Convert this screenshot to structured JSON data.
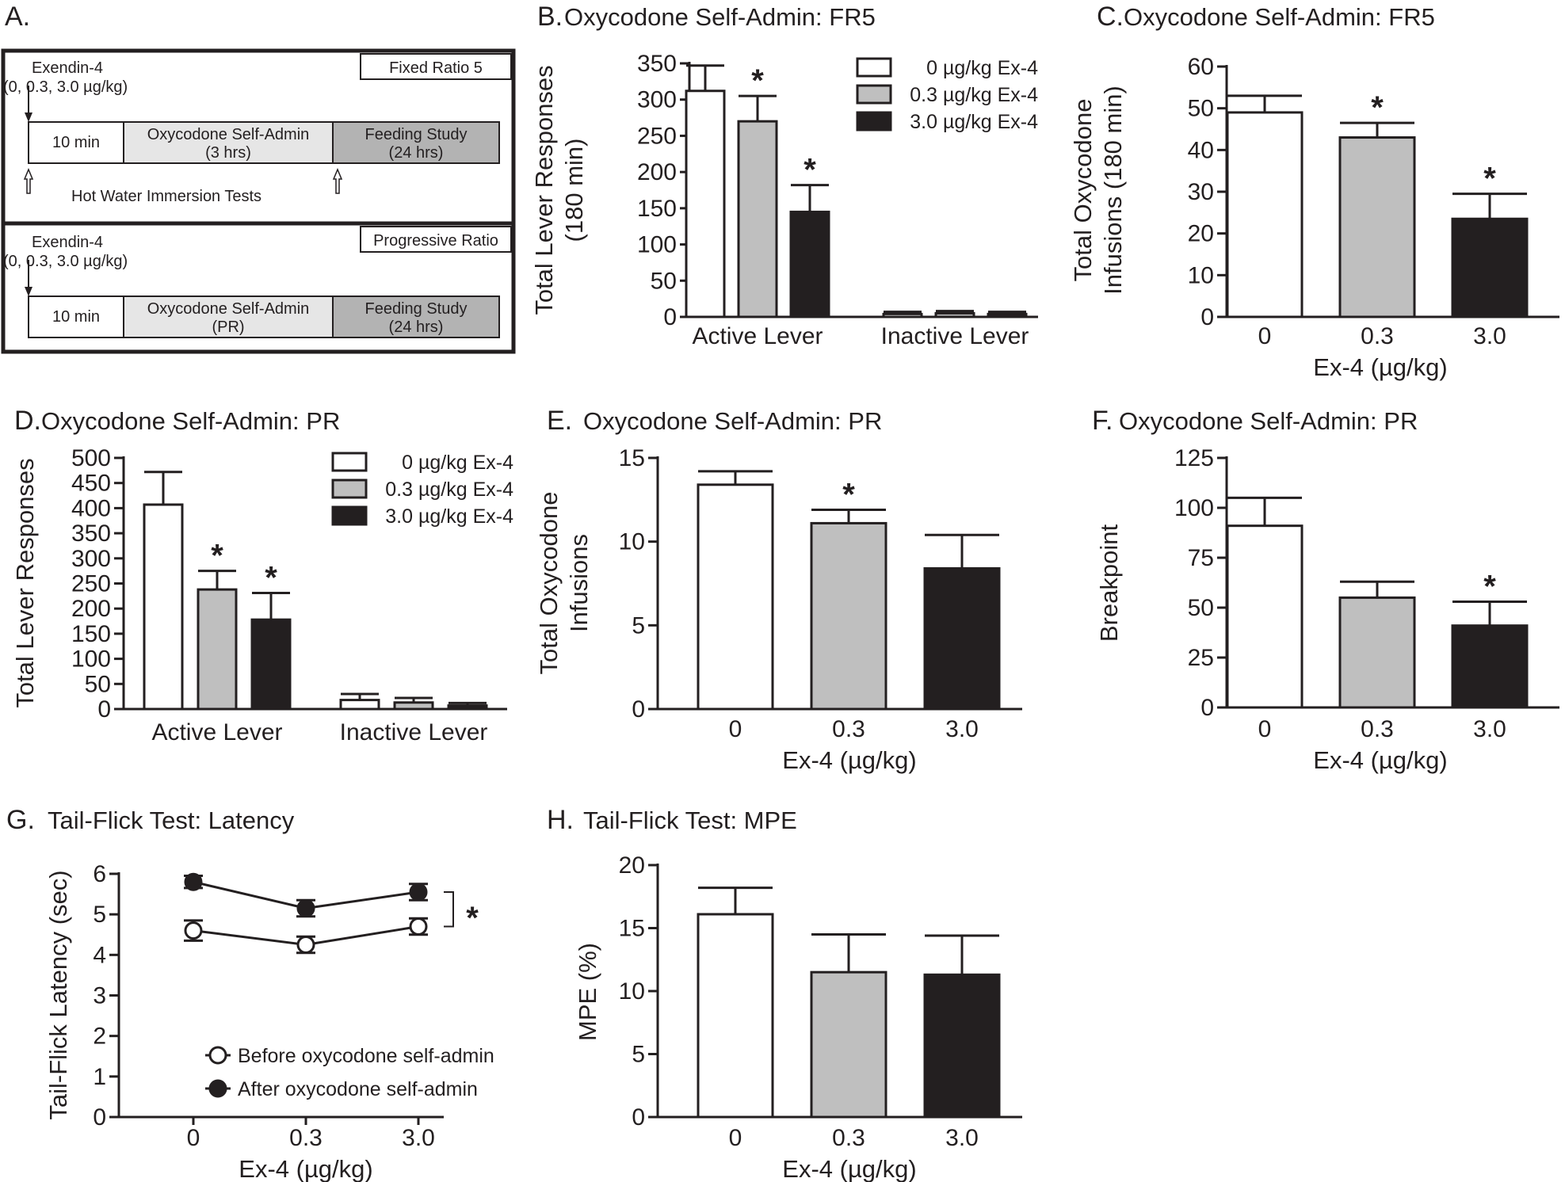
{
  "colors": {
    "dose0": "#ffffff",
    "dose03": "#bfbfbf",
    "dose30": "#231f20",
    "axis": "#231f20",
    "box_light": "#e6e6e6",
    "box_dark": "#b3b3b3"
  },
  "panel_a": {
    "letter": "A.",
    "fr5": {
      "injection_label": "Exendin-4",
      "dose_label": "(0, 0.3, 3.0 µg/kg)",
      "schedule_label": "Fixed Ratio 5",
      "box1": "10 min",
      "box2_line1": "Oxycodone Self-Admin",
      "box2_line2": "(3 hrs)",
      "box3_line1": "Feeding Study",
      "box3_line2": "(24 hrs)",
      "hot_water_label": "Hot Water Immersion Tests"
    },
    "pr": {
      "injection_label": "Exendin-4",
      "dose_label": "(0, 0.3, 3.0 µg/kg)",
      "schedule_label": "Progressive Ratio",
      "box1": "10 min",
      "box2_line1": "Oxycodone Self-Admin",
      "box2_line2": "(PR)",
      "box3_line1": "Feeding Study",
      "box3_line2": "(24 hrs)"
    }
  },
  "chart_data": [
    {
      "id": "B",
      "letter": "B.",
      "type": "bar",
      "title": "Oxycodone Self-Admin: FR5",
      "ylabel": [
        "Total Lever Responses",
        "(180 min)"
      ],
      "xlabel": "",
      "ylim": [
        0,
        350
      ],
      "yticks": [
        0,
        50,
        100,
        150,
        200,
        250,
        300,
        350
      ],
      "categories": [
        "Active Lever",
        "Inactive Lever"
      ],
      "series": [
        {
          "name": "0 µg/kg Ex-4",
          "values": [
            312,
            4
          ],
          "errors": [
            35,
            3
          ],
          "sig": [
            false,
            false
          ]
        },
        {
          "name": "0.3 µg/kg Ex-4",
          "values": [
            270,
            5
          ],
          "errors": [
            35,
            3
          ],
          "sig": [
            true,
            false
          ]
        },
        {
          "name": "3.0 µg/kg Ex-4",
          "values": [
            145,
            4
          ],
          "errors": [
            37,
            3
          ],
          "sig": [
            true,
            false
          ]
        }
      ],
      "legend": "top-right",
      "sig_marker": "*"
    },
    {
      "id": "C",
      "letter": "C.",
      "type": "bar",
      "title": "Oxycodone Self-Admin: FR5",
      "ylabel": [
        "Total Oxycodone",
        "Infusions (180 min)"
      ],
      "xlabel": "Ex-4 (µg/kg)",
      "ylim": [
        0,
        60
      ],
      "yticks": [
        0,
        10,
        20,
        30,
        40,
        50,
        60
      ],
      "categories": [
        "0",
        "0.3",
        "3.0"
      ],
      "values": [
        49,
        43,
        23.5
      ],
      "errors": [
        4,
        3.5,
        6
      ],
      "sig": [
        false,
        true,
        true
      ],
      "sig_marker": "*"
    },
    {
      "id": "D",
      "letter": "D.",
      "type": "bar",
      "title": "Oxycodone Self-Admin: PR",
      "ylabel": [
        "Total Lever Responses"
      ],
      "xlabel": "",
      "ylim": [
        0,
        500
      ],
      "yticks": [
        0,
        50,
        100,
        150,
        200,
        250,
        300,
        350,
        400,
        450,
        500
      ],
      "categories": [
        "Active Lever",
        "Inactive Lever"
      ],
      "series": [
        {
          "name": "0 µg/kg Ex-4",
          "values": [
            407,
            18
          ],
          "errors": [
            65,
            12
          ],
          "sig": [
            false,
            false
          ]
        },
        {
          "name": "0.3 µg/kg Ex-4",
          "values": [
            238,
            13
          ],
          "errors": [
            37,
            9
          ],
          "sig": [
            true,
            false
          ]
        },
        {
          "name": "3.0 µg/kg Ex-4",
          "values": [
            178,
            7
          ],
          "errors": [
            53,
            5
          ],
          "sig": [
            true,
            false
          ]
        }
      ],
      "legend": "top-right",
      "sig_marker": "*"
    },
    {
      "id": "E",
      "letter": "E.",
      "type": "bar",
      "title": "Oxycodone Self-Admin: PR",
      "ylabel": [
        "Total Oxycodone",
        "Infusions"
      ],
      "xlabel": "Ex-4 (µg/kg)",
      "ylim": [
        0,
        15
      ],
      "yticks": [
        0,
        5,
        10,
        15
      ],
      "categories": [
        "0",
        "0.3",
        "3.0"
      ],
      "values": [
        13.4,
        11.1,
        8.4
      ],
      "errors": [
        0.8,
        0.8,
        2.0
      ],
      "sig": [
        false,
        true,
        false
      ],
      "sig_marker": "*"
    },
    {
      "id": "F",
      "letter": "F.",
      "type": "bar",
      "title": "Oxycodone Self-Admin: PR",
      "ylabel": [
        "Breakpoint"
      ],
      "xlabel": "Ex-4 (µg/kg)",
      "ylim": [
        0,
        125
      ],
      "yticks": [
        0,
        25,
        50,
        75,
        100,
        125
      ],
      "categories": [
        "0",
        "0.3",
        "3.0"
      ],
      "values": [
        91,
        55,
        41
      ],
      "errors": [
        14,
        8,
        12
      ],
      "sig": [
        false,
        false,
        true
      ],
      "sig_marker": "*"
    },
    {
      "id": "G",
      "letter": "G.",
      "type": "line",
      "title": "Tail-Flick Test: Latency",
      "ylabel": [
        "Tail-Flick Latency (sec)"
      ],
      "xlabel": "Ex-4 (µg/kg)",
      "ylim": [
        0,
        6
      ],
      "yticks": [
        0,
        1,
        2,
        3,
        4,
        5,
        6
      ],
      "categories": [
        "0",
        "0.3",
        "3.0"
      ],
      "series": [
        {
          "name": "Before oxycodone self-admin",
          "values": [
            4.6,
            4.25,
            4.7
          ],
          "errors": [
            0.25,
            0.2,
            0.2
          ],
          "marker": "open"
        },
        {
          "name": "After oxycodone self-admin",
          "values": [
            5.8,
            5.15,
            5.55
          ],
          "errors": [
            0.15,
            0.2,
            0.2
          ],
          "marker": "filled"
        }
      ],
      "legend": "bottom-right",
      "sig_marker": "*"
    },
    {
      "id": "H",
      "letter": "H.",
      "type": "bar",
      "title": "Tail-Flick Test: MPE",
      "ylabel": [
        "MPE (%)"
      ],
      "xlabel": "Ex-4 (µg/kg)",
      "ylim": [
        0,
        20
      ],
      "yticks": [
        0,
        5,
        10,
        15,
        20
      ],
      "categories": [
        "0",
        "0.3",
        "3.0"
      ],
      "values": [
        16.1,
        11.5,
        11.3
      ],
      "errors": [
        2.1,
        3.0,
        3.1
      ],
      "sig": [
        false,
        false,
        false
      ]
    }
  ]
}
